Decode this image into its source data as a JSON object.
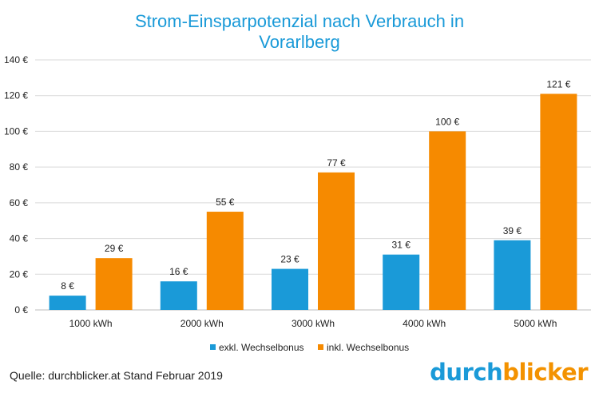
{
  "chart_data": {
    "type": "bar",
    "title_lines": [
      "Strom-Einsparpotenzial  nach Verbrauch in",
      "Vorarlberg"
    ],
    "categories": [
      "1000 kWh",
      "2000 kWh",
      "3000 kWh",
      "4000 kWh",
      "5000 kWh"
    ],
    "series": [
      {
        "name": "exkl. Wechselbonus",
        "color": "#1a9ad8",
        "values": [
          8,
          16,
          23,
          31,
          39
        ],
        "labels": [
          "8 €",
          "16 €",
          "23 €",
          "31 €",
          "39 €"
        ]
      },
      {
        "name": "inkl. Wechselbonus",
        "color": "#f68a00",
        "values": [
          29,
          55,
          77,
          100,
          121
        ],
        "labels": [
          "29 €",
          "55 €",
          "77 €",
          "100 €",
          "121 €"
        ]
      }
    ],
    "ylim": [
      0,
      140
    ],
    "yticks": [
      0,
      20,
      40,
      60,
      80,
      100,
      120,
      140
    ],
    "ytick_labels": [
      "0 €",
      "20 €",
      "40 €",
      "60 €",
      "80 €",
      "100 €",
      "120 €",
      "140 €"
    ],
    "grid": true,
    "legend_position": "bottom"
  },
  "footer": {
    "source": "Quelle: durchblicker.at Stand Februar 2019",
    "logo_part1": "durch",
    "logo_part2": "blicker"
  }
}
